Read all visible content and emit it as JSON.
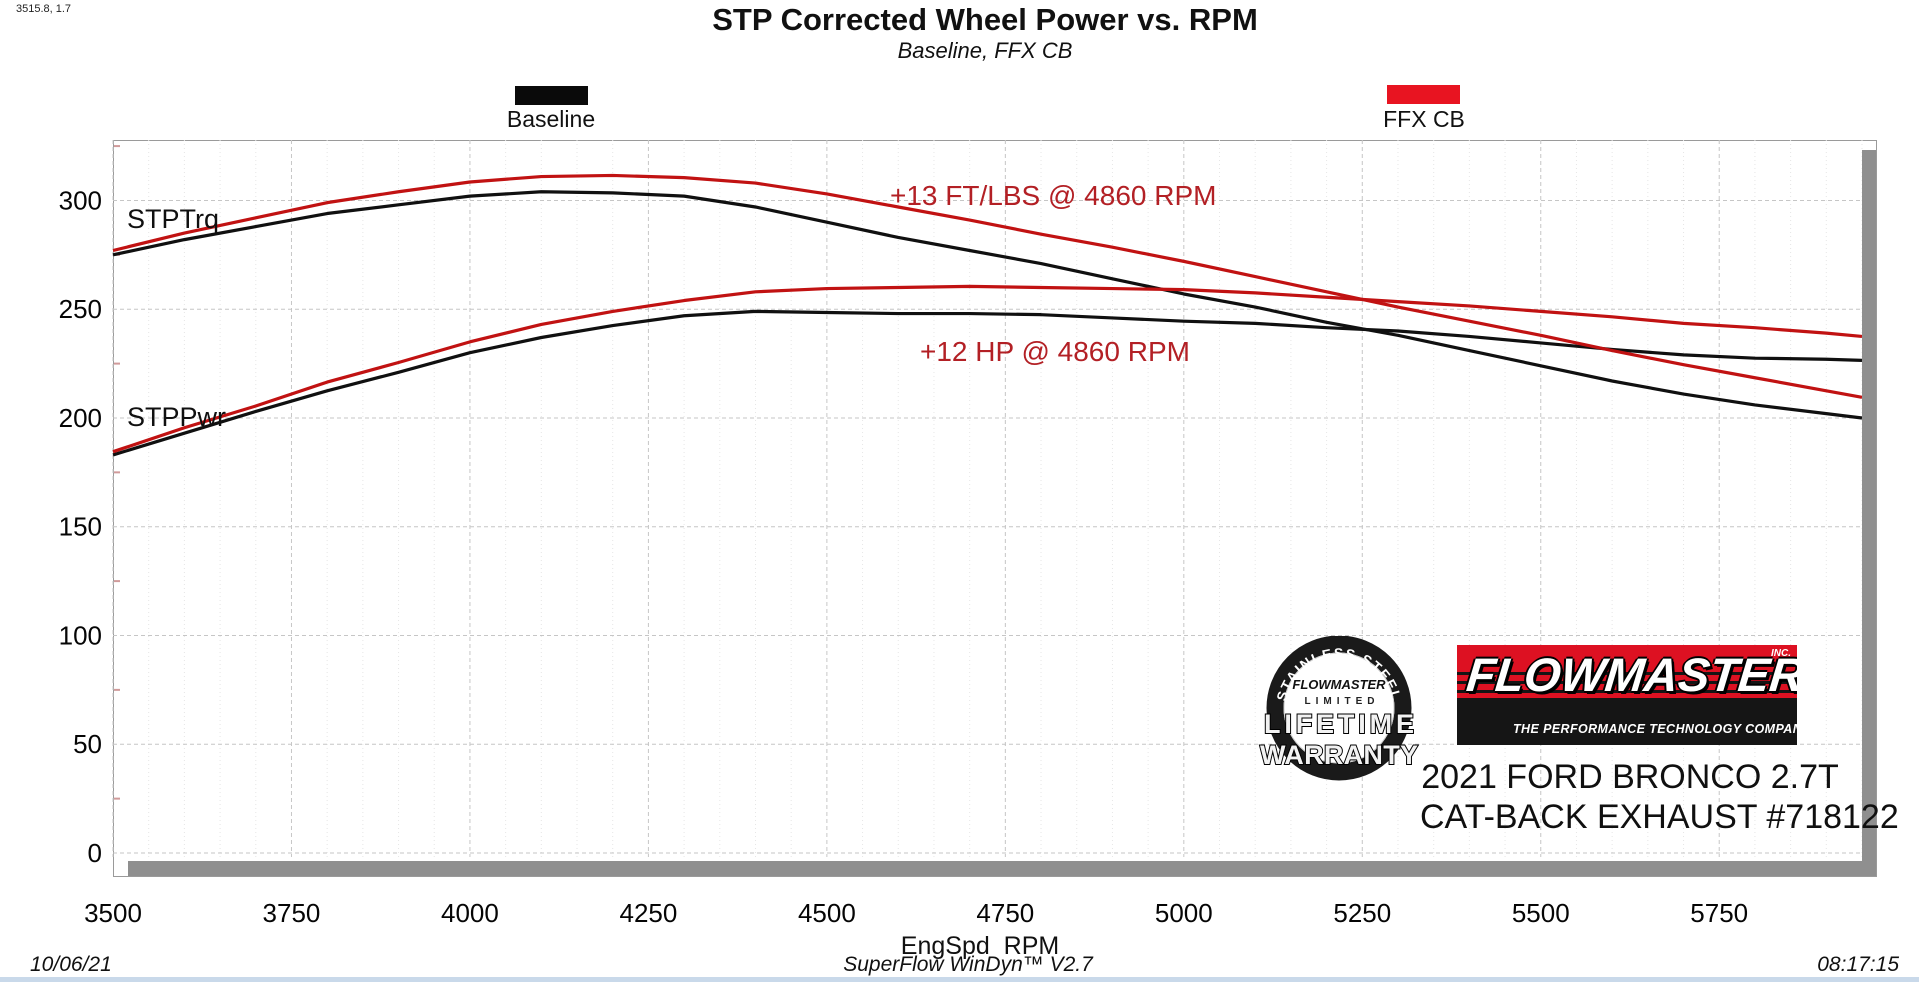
{
  "window": {
    "coords_readout": "3515.8, 1.7"
  },
  "header": {
    "title": "STP Corrected Wheel Power vs. RPM",
    "subtitle": "Baseline, FFX CB"
  },
  "legend": {
    "baseline": {
      "label": "Baseline",
      "color": "#0a0a0a"
    },
    "ffx": {
      "label": "FFX CB",
      "color": "#e81421"
    }
  },
  "plot_labels": {
    "torque_curve": "STPTrq",
    "power_curve": "STPPwr",
    "torque_gain": "+13 FT/LBS @ 4860 RPM",
    "power_gain": "+12 HP @ 4860 RPM"
  },
  "branding": {
    "badge": {
      "arc_text": "STAINLESS STEEL",
      "brand": "FLOWMASTER",
      "limited": "LIMITED",
      "line1": "LIFETIME",
      "line2": "WARRANTY"
    },
    "logo": {
      "name": "FLOWMASTER",
      "inc": "INC.",
      "tagline": "THE PERFORMANCE TECHNOLOGY COMPANY"
    },
    "vehicle_line1": "2021 FORD BRONCO 2.7T",
    "vehicle_line2": "CAT-BACK EXHAUST #718122"
  },
  "footer": {
    "date": "10/06/21",
    "software": "SuperFlow WinDyn™ V2.7",
    "time": "08:17:15"
  },
  "chart_data": {
    "type": "line",
    "title": "STP Corrected Wheel Power vs. RPM",
    "subtitle": "Baseline, FFX CB",
    "xlabel": "EngSpd  RPM",
    "ylabel": "",
    "xlim": [
      3500,
      5950
    ],
    "ylim": [
      0,
      327.8
    ],
    "x_ticks": [
      3500,
      3750,
      4000,
      4250,
      4500,
      4750,
      5000,
      5250,
      5500,
      5750
    ],
    "y_ticks": [
      0,
      50,
      100,
      150,
      200,
      250,
      300
    ],
    "grid": "on",
    "legend_position": "top",
    "x": [
      3500,
      3600,
      3700,
      3800,
      3900,
      4000,
      4100,
      4200,
      4300,
      4400,
      4500,
      4600,
      4700,
      4800,
      4900,
      5000,
      5100,
      5200,
      5300,
      5400,
      5500,
      5600,
      5700,
      5800,
      5900,
      5950
    ],
    "series": [
      {
        "name": "STPTrq Baseline",
        "unit": "ft-lb",
        "color": "#101010",
        "values": [
          275,
          282,
          288,
          294,
          298,
          302,
          304,
          303.5,
          302,
          297,
          290,
          283,
          277,
          271,
          264,
          257,
          251,
          244,
          238,
          231,
          224,
          217,
          211,
          206,
          202,
          200
        ]
      },
      {
        "name": "STPTrq FFX CB",
        "unit": "ft-lb",
        "color": "#c11212",
        "values": [
          277,
          285,
          292,
          299,
          304,
          308.5,
          311,
          311.5,
          310.5,
          308,
          303,
          297,
          291,
          284.5,
          278.5,
          272,
          265,
          258,
          251,
          244.5,
          238,
          231,
          224.5,
          218.5,
          212.5,
          209.5
        ]
      },
      {
        "name": "STPPwr Baseline",
        "unit": "hp",
        "color": "#101010",
        "values": [
          183,
          193,
          203,
          212.5,
          221,
          230,
          237,
          242.5,
          247,
          249,
          248.5,
          248,
          248,
          247.5,
          246,
          244.5,
          243.5,
          241.5,
          240,
          237.5,
          234.5,
          231.5,
          229,
          227.5,
          227,
          226.5
        ]
      },
      {
        "name": "STPPwr FFX CB",
        "unit": "hp",
        "color": "#c11212",
        "values": [
          184.5,
          195.5,
          205.5,
          216.5,
          225.5,
          235,
          243,
          249,
          254,
          258,
          259.5,
          260,
          260.5,
          260,
          259.5,
          259,
          257.5,
          255.5,
          253.5,
          251.5,
          249,
          246.5,
          243.5,
          241.5,
          239,
          237.5
        ]
      }
    ],
    "annotations": [
      {
        "text": "+13 FT/LBS @ 4860 RPM",
        "x": 4600,
        "y": 307,
        "color": "#b32025"
      },
      {
        "text": "+12 HP @ 4860 RPM",
        "x": 4650,
        "y": 236,
        "color": "#b32025"
      }
    ]
  }
}
